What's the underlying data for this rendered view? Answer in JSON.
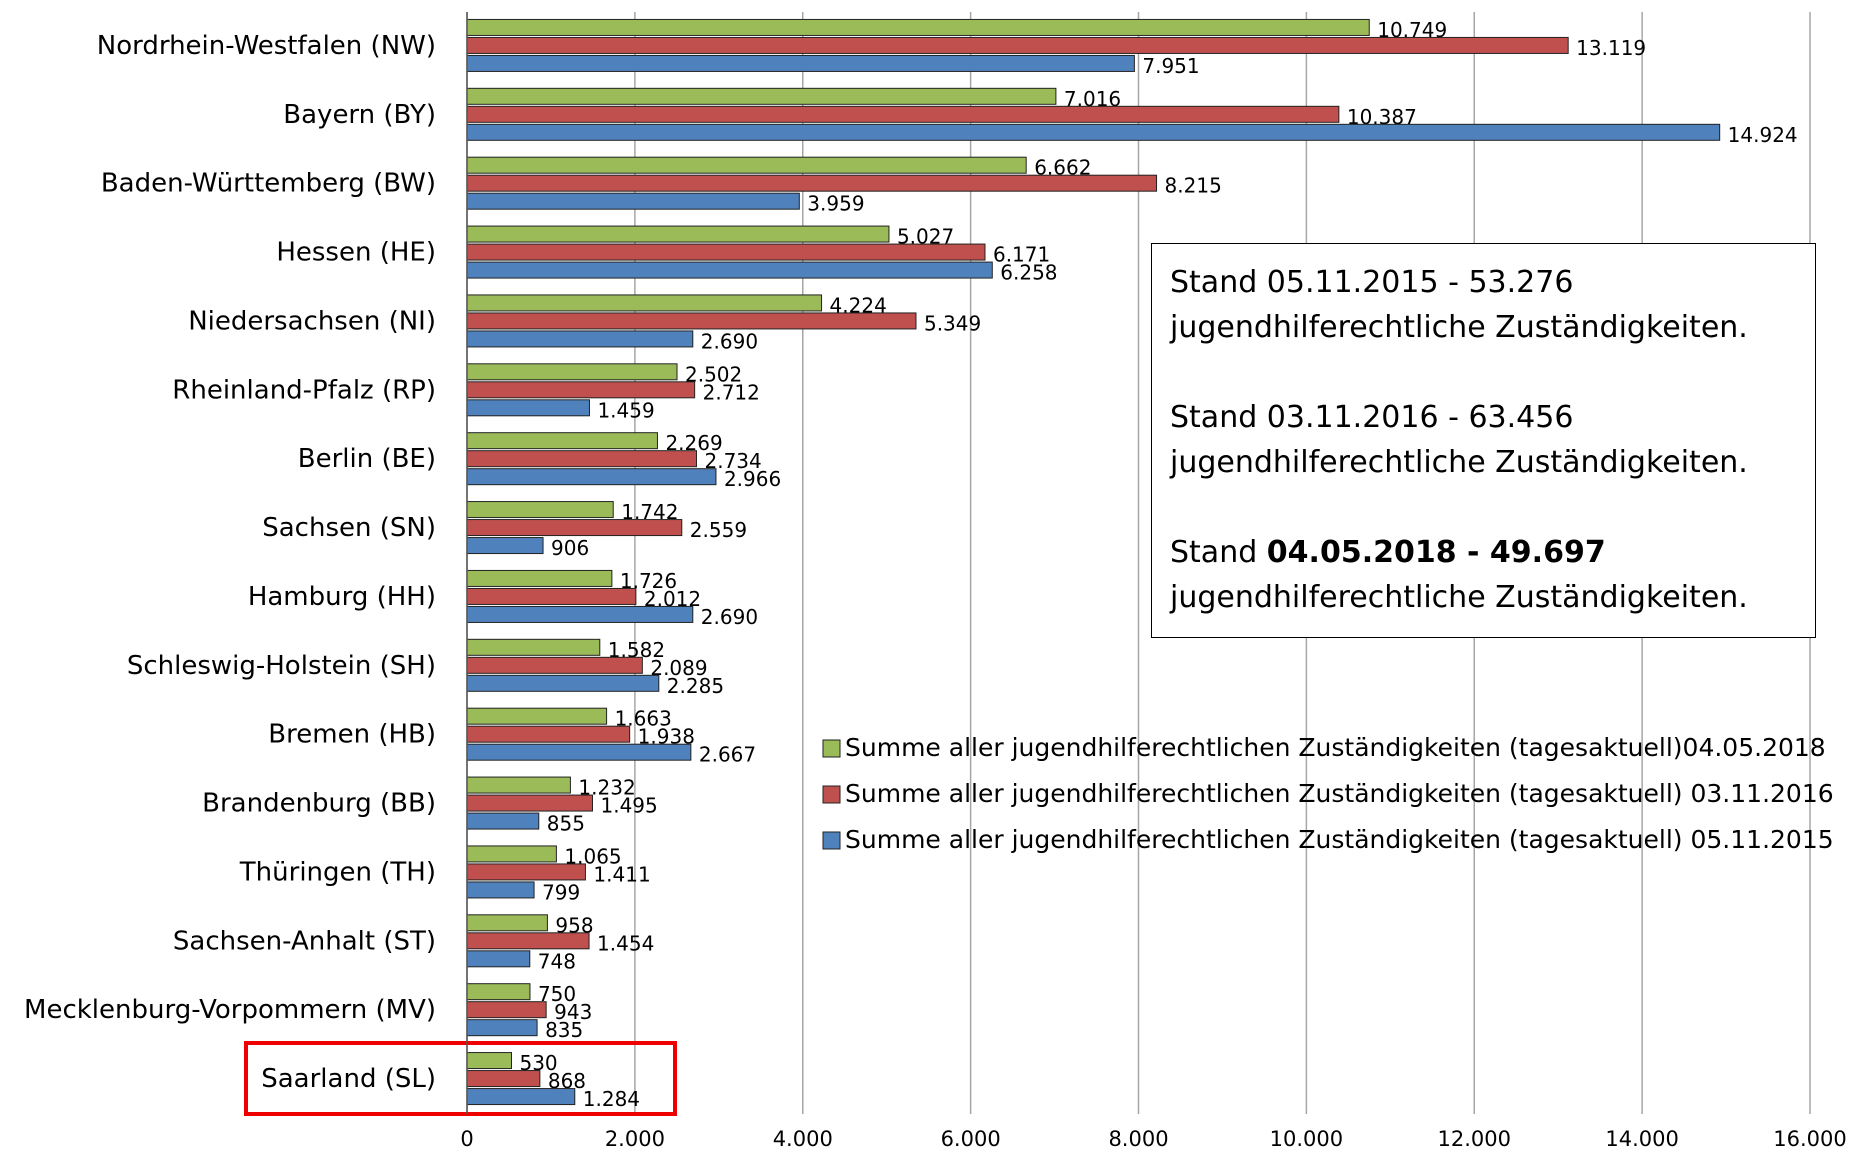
{
  "chart_data": {
    "type": "hbar",
    "categories": [
      "Nordrhein-Westfalen (NW)",
      "Bayern (BY)",
      "Baden-Württemberg (BW)",
      "Hessen (HE)",
      "Niedersachsen (NI)",
      "Rheinland-Pfalz (RP)",
      "Berlin (BE)",
      "Sachsen (SN)",
      "Hamburg (HH)",
      "Schleswig-Holstein (SH)",
      "Bremen (HB)",
      "Brandenburg (BB)",
      "Thüringen (TH)",
      "Sachsen-Anhalt (ST)",
      "Mecklenburg-Vorpommern (MV)",
      "Saarland (SL)"
    ],
    "series": [
      {
        "name": "Summe aller jugendhilferechtlichen Zuständigkeiten (tagesaktuell)04.05.2018",
        "color": "#9bbb59",
        "values": [
          10749,
          7016,
          6662,
          5027,
          4224,
          2502,
          2269,
          1742,
          1726,
          1582,
          1663,
          1232,
          1065,
          958,
          750,
          530
        ],
        "value_labels": [
          "10.749",
          "7.016",
          "6.662",
          "5.027",
          "4.224",
          "2.502",
          "2.269",
          "1.742",
          "1.726",
          "1.582",
          "1.663",
          "1.232",
          "1.065",
          "958",
          "750",
          "530"
        ]
      },
      {
        "name": "Summe aller jugendhilferechtlichen Zuständigkeiten (tagesaktuell) 03.11.2016",
        "color": "#c0504d",
        "values": [
          13119,
          10387,
          8215,
          6171,
          5349,
          2712,
          2734,
          2559,
          2012,
          2089,
          1938,
          1495,
          1411,
          1454,
          943,
          868
        ],
        "value_labels": [
          "13.119",
          "10.387",
          "8.215",
          "6.171",
          "5.349",
          "2.712",
          "2.734",
          "2.559",
          "2.012",
          "2.089",
          "1.938",
          "1.495",
          "1.411",
          "1.454",
          "943",
          "868"
        ]
      },
      {
        "name": "Summe aller jugendhilferechtlichen Zuständigkeiten (tagesaktuell) 05.11.2015",
        "color": "#4f81bd",
        "values": [
          7951,
          14924,
          3959,
          6258,
          2690,
          1459,
          2966,
          906,
          2690,
          2285,
          2667,
          855,
          799,
          748,
          835,
          1284
        ],
        "value_labels": [
          "7.951",
          "14.924",
          "3.959",
          "6.258",
          "2.690",
          "1.459",
          "2.966",
          "906",
          "2.690",
          "2.285",
          "2.667",
          "855",
          "799",
          "748",
          "835",
          "1.284"
        ]
      }
    ],
    "xlim": [
      0,
      16000
    ],
    "xticks": [
      0,
      {
        "value": 2000,
        "label": "2.000"
      },
      {
        "value": 4000,
        "label": "4.000"
      },
      {
        "value": 6000,
        "label": "6.000"
      },
      {
        "value": 8000,
        "label": "8.000"
      },
      {
        "value": 10000,
        "label": "10.000"
      },
      {
        "value": 12000,
        "label": "12.000"
      },
      {
        "value": 14000,
        "label": "14.000"
      },
      {
        "value": 16000,
        "label": "16.000"
      }
    ],
    "grid": true,
    "annotation": [
      [
        [
          {
            "text": "Stand 05.11.2015 - 53.276"
          }
        ],
        [
          {
            "text": "jugendhilferechtliche Zuständigkeiten."
          }
        ]
      ],
      [
        [
          {
            "text": "Stand 03.11.2016 - 63.456"
          }
        ],
        [
          {
            "text": "jugendhilferechtliche Zuständigkeiten."
          }
        ]
      ],
      [
        [
          {
            "text": "Stand "
          },
          {
            "text": "04.05.2018 - 49.697",
            "bold": true
          }
        ],
        [
          {
            "text": "jugendhilferechtliche Zuständigkeiten."
          }
        ]
      ]
    ]
  }
}
